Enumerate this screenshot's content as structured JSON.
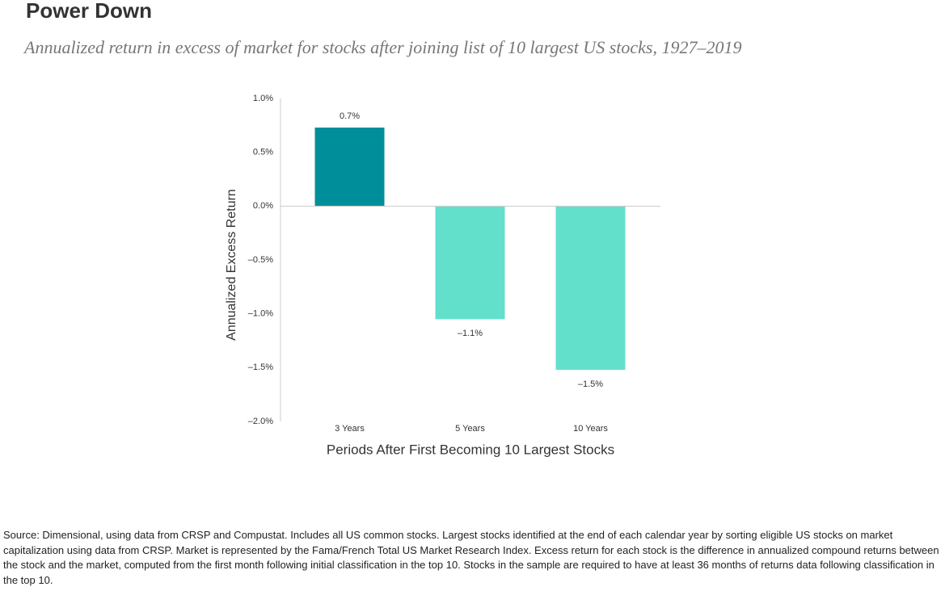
{
  "chart_data": {
    "type": "bar",
    "title": "Power Down",
    "subtitle": "Annualized return in excess of market for stocks after joining list of 10 largest US stocks, 1927–2019",
    "y_label": "Annualized Excess Return",
    "x_label": "Periods After First Becoming 10 Largest Stocks",
    "categories": [
      "3 Years",
      "5 Years",
      "10 Years"
    ],
    "values": [
      0.73,
      -1.05,
      -1.52
    ],
    "value_labels": [
      "0.7%",
      "–1.1%",
      "–1.5%"
    ],
    "colors": [
      "#008f9a",
      "#62e0cc",
      "#62e0cc"
    ],
    "ylim": [
      -2,
      1
    ],
    "yticks": [
      {
        "value": 1,
        "label": "1.0%"
      },
      {
        "value": 0.5,
        "label": "0.5%"
      },
      {
        "value": 0,
        "label": "0.0%"
      },
      {
        "value": -0.5,
        "label": "–0.5%"
      },
      {
        "value": -1,
        "label": "–1.0%"
      },
      {
        "value": -1.5,
        "label": "–1.5%"
      },
      {
        "value": -2,
        "label": "–2.0%"
      }
    ],
    "grid": false
  },
  "source": "Source: Dimensional, using data from CRSP and Compustat. Includes all US common stocks. Largest stocks identified at the end of each calendar year by sorting eligible US stocks on market capitalization using data from CRSP. Market is represented by the Fama/French Total US Market Research Index. Excess return for each stock is the difference in annualized compound returns between the stock and the market, computed from the first month following initial classification in the top 10. Stocks in the sample are required to have at least 36 months of returns data following classification in the top 10."
}
